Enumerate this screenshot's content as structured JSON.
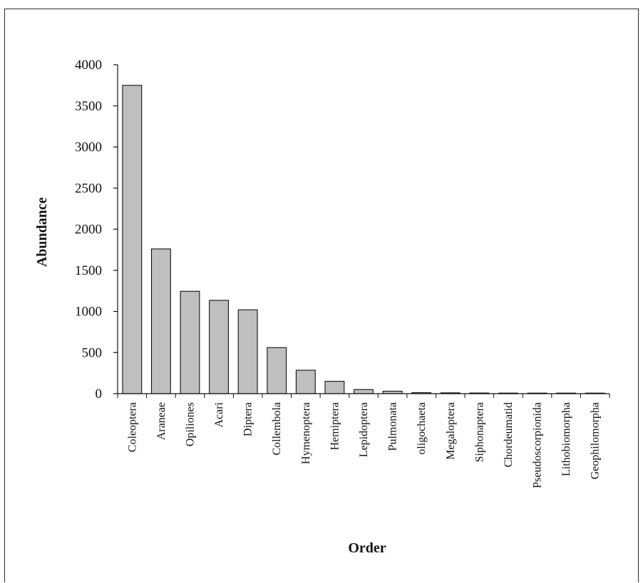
{
  "chart_data": {
    "type": "bar",
    "title": "",
    "xlabel": "Order",
    "ylabel": "Abundance",
    "ylim": [
      0,
      4000
    ],
    "yticks": [
      0,
      500,
      1000,
      1500,
      2000,
      2500,
      3000,
      3500,
      4000
    ],
    "grid": false,
    "bar_color": "#bfbfbf",
    "categories": [
      "Coleoptera",
      "Araneae",
      "Opiliones",
      "Acari",
      "Diptera",
      "Collembola",
      "Hymenoptera",
      "Hemiptera",
      "Lepidoptera",
      "Pulmonata",
      "oligochaeta",
      "Megaloptera",
      "Siphonaptera",
      "Chordeumatid",
      "Pseudoscorpionida",
      "Lithobiomorpha",
      "Geophilomorpha"
    ],
    "values": [
      3750,
      1760,
      1245,
      1135,
      1020,
      560,
      285,
      150,
      50,
      30,
      12,
      10,
      8,
      7,
      6,
      3,
      2
    ]
  }
}
